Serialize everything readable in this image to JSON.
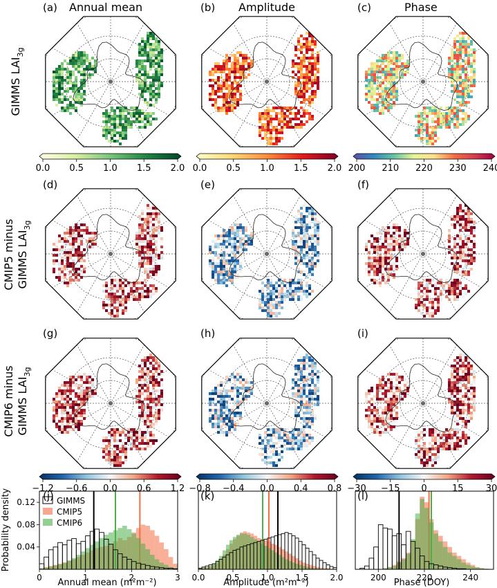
{
  "titles": {
    "col1": "Annual mean",
    "col2": "Amplitude",
    "col3": "Phase"
  },
  "row_labels": {
    "row1": "GIMMS LAI",
    "row1_sub": "3g",
    "row2_line1": "CMIP5 minus",
    "row2_line2": "GIMMS LAI",
    "row2_sub": "3g",
    "row3_line1": "CMIP6 minus",
    "row3_line2": "GIMMS LAI",
    "row3_sub": "3g"
  },
  "panel_letters": {
    "a": "(a)",
    "b": "(b)",
    "c": "(c)",
    "d": "(d)",
    "e": "(e)",
    "f": "(f)",
    "g": "(g)",
    "h": "(h)",
    "i": "(i)",
    "j": "(j)",
    "k": "(k)",
    "l": "(l)"
  },
  "colorbars": {
    "greens": {
      "ticks": [
        "0.0",
        "0.5",
        "1.0",
        "1.5",
        "2.0"
      ],
      "colors": [
        "#ffffe5",
        "#d9f0a3",
        "#78c679",
        "#238443",
        "#004529"
      ]
    },
    "ylorrd": {
      "ticks": [
        "0.0",
        "0.5",
        "1.0",
        "1.5",
        "2.0"
      ],
      "colors": [
        "#ffffcc",
        "#fed976",
        "#fd8d3c",
        "#e31a1c",
        "#800026"
      ]
    },
    "spectral": {
      "ticks": [
        "200",
        "210",
        "220",
        "230",
        "240"
      ],
      "colors": [
        "#5e4fa2",
        "#3288bd",
        "#66c2a5",
        "#e6f598",
        "#fee08b",
        "#f46d43",
        "#d53e4f",
        "#9e0142"
      ]
    },
    "div1": {
      "ticks": [
        "−1.2",
        "−0.6",
        "0.0",
        "0.6",
        "1.2"
      ],
      "colors": [
        "#053061",
        "#2166ac",
        "#92c5de",
        "#f7f7f7",
        "#f4a582",
        "#b2182b",
        "#67001f"
      ]
    },
    "div2": {
      "ticks": [
        "−0.8",
        "−0.4",
        "0.0",
        "0.4",
        "0.8"
      ],
      "colors": [
        "#053061",
        "#2166ac",
        "#92c5de",
        "#f7f7f7",
        "#f4a582",
        "#b2182b",
        "#67001f"
      ]
    },
    "div3": {
      "ticks": [
        "−30",
        "−15",
        "0",
        "15",
        "30"
      ],
      "colors": [
        "#053061",
        "#2166ac",
        "#92c5de",
        "#f7f7f7",
        "#f4a582",
        "#b2182b",
        "#67001f"
      ]
    }
  },
  "colors": {
    "gimms": "#000000",
    "cmip5": "#f46d43",
    "cmip6": "#4daf4a"
  },
  "chart_data": [
    {
      "type": "bar",
      "panel": "(j)",
      "xlabel": "Annual mean (m²m⁻²)",
      "ylabel": "Probability density",
      "xlim": [
        0,
        3
      ],
      "ylim": [
        0,
        0.14
      ],
      "xticks": [
        "0",
        "1",
        "2",
        "3"
      ],
      "yticks": [
        "0.04",
        "0.08",
        "0.12"
      ],
      "legend": [
        "GIMMS",
        "CMIP5",
        "CMIP6"
      ],
      "legend_position": "top-left",
      "bin_start": 0.0,
      "bin_width": 0.1,
      "series": [
        {
          "name": "GIMMS",
          "style": "outline",
          "values": [
            0.01,
            0.022,
            0.035,
            0.04,
            0.048,
            0.044,
            0.052,
            0.055,
            0.046,
            0.05,
            0.06,
            0.068,
            0.072,
            0.066,
            0.054,
            0.045,
            0.035,
            0.028,
            0.022,
            0.018,
            0.014,
            0.011,
            0.009,
            0.007,
            0.005,
            0.004,
            0.003,
            0.002,
            0.002,
            0.001
          ],
          "mean": 1.18
        },
        {
          "name": "CMIP5",
          "style": "filled",
          "values": [
            0.002,
            0.004,
            0.006,
            0.008,
            0.01,
            0.012,
            0.015,
            0.018,
            0.022,
            0.026,
            0.03,
            0.034,
            0.038,
            0.04,
            0.042,
            0.045,
            0.05,
            0.056,
            0.052,
            0.058,
            0.066,
            0.074,
            0.08,
            0.078,
            0.07,
            0.06,
            0.048,
            0.036,
            0.022,
            0.01
          ],
          "mean": 2.18
        },
        {
          "name": "CMIP6",
          "style": "filled",
          "values": [
            0.002,
            0.003,
            0.005,
            0.007,
            0.009,
            0.012,
            0.016,
            0.02,
            0.026,
            0.032,
            0.038,
            0.044,
            0.05,
            0.056,
            0.062,
            0.066,
            0.07,
            0.074,
            0.078,
            0.072,
            0.064,
            0.056,
            0.046,
            0.036,
            0.026,
            0.018,
            0.012,
            0.008,
            0.004,
            0.002
          ],
          "mean": 1.65
        }
      ]
    },
    {
      "type": "bar",
      "panel": "(k)",
      "xlabel": "Amplitude (m²m⁻²)",
      "xlim": [
        0,
        2
      ],
      "ylim": [
        0,
        0.14
      ],
      "xticks": [
        "0.0",
        "0.5",
        "1.0",
        "1.5",
        "2.0"
      ],
      "bin_start": 0.0,
      "bin_width": 0.05,
      "series": [
        {
          "name": "GIMMS",
          "style": "outline",
          "values": [
            0.002,
            0.004,
            0.006,
            0.008,
            0.01,
            0.014,
            0.018,
            0.022,
            0.026,
            0.03,
            0.034,
            0.036,
            0.04,
            0.042,
            0.044,
            0.046,
            0.048,
            0.05,
            0.052,
            0.054,
            0.056,
            0.058,
            0.06,
            0.062,
            0.064,
            0.066,
            0.064,
            0.06,
            0.056,
            0.05,
            0.044,
            0.038,
            0.032,
            0.026,
            0.02,
            0.016,
            0.012,
            0.008,
            0.005,
            0.003
          ],
          "mean": 1.15
        },
        {
          "name": "CMIP5",
          "style": "filled",
          "values": [
            0.002,
            0.003,
            0.004,
            0.006,
            0.008,
            0.012,
            0.018,
            0.026,
            0.036,
            0.046,
            0.054,
            0.06,
            0.066,
            0.068,
            0.066,
            0.064,
            0.06,
            0.056,
            0.054,
            0.052,
            0.05,
            0.046,
            0.044,
            0.04,
            0.036,
            0.032,
            0.028,
            0.024,
            0.02,
            0.016,
            0.012,
            0.01,
            0.008,
            0.006,
            0.004,
            0.003,
            0.002,
            0.002,
            0.001,
            0.001
          ],
          "mean": 1.02
        },
        {
          "name": "CMIP6",
          "style": "filled",
          "values": [
            0.002,
            0.003,
            0.004,
            0.006,
            0.01,
            0.016,
            0.024,
            0.034,
            0.044,
            0.052,
            0.058,
            0.062,
            0.064,
            0.064,
            0.062,
            0.058,
            0.054,
            0.05,
            0.046,
            0.042,
            0.038,
            0.034,
            0.03,
            0.026,
            0.022,
            0.018,
            0.015,
            0.012,
            0.01,
            0.008,
            0.006,
            0.004,
            0.003,
            0.002,
            0.002,
            0.001,
            0.001,
            0.001,
            0.0,
            0.0
          ],
          "mean": 0.93
        }
      ]
    },
    {
      "type": "bar",
      "panel": "(l)",
      "xlabel": "Phase (DOY)",
      "xlim": [
        190,
        250
      ],
      "ylim": [
        0,
        0.14
      ],
      "xticks": [
        "200",
        "220",
        "240"
      ],
      "bin_start": 190,
      "bin_width": 2,
      "series": [
        {
          "name": "GIMMS",
          "style": "outline",
          "values": [
            0.0,
            0.002,
            0.006,
            0.02,
            0.04,
            0.08,
            0.074,
            0.072,
            0.06,
            0.064,
            0.044,
            0.068,
            0.05,
            0.038,
            0.024,
            0.014,
            0.01,
            0.008,
            0.006,
            0.004,
            0.003,
            0.002,
            0.001,
            0.001,
            0.0,
            0.0,
            0.0,
            0.0,
            0.0,
            0.0
          ],
          "mean": 209
        },
        {
          "name": "CMIP5",
          "style": "filled",
          "values": [
            0.0,
            0.0,
            0.0,
            0.0,
            0.0,
            0.0,
            0.002,
            0.004,
            0.008,
            0.014,
            0.02,
            0.03,
            0.05,
            0.09,
            0.13,
            0.12,
            0.09,
            0.07,
            0.06,
            0.05,
            0.04,
            0.03,
            0.024,
            0.018,
            0.012,
            0.008,
            0.004,
            0.002,
            0.001,
            0.0
          ],
          "mean": 222
        },
        {
          "name": "CMIP6",
          "style": "filled",
          "values": [
            0.0,
            0.0,
            0.0,
            0.0,
            0.0,
            0.0,
            0.002,
            0.004,
            0.006,
            0.012,
            0.018,
            0.028,
            0.054,
            0.1,
            0.126,
            0.11,
            0.084,
            0.064,
            0.05,
            0.04,
            0.03,
            0.024,
            0.018,
            0.012,
            0.008,
            0.005,
            0.003,
            0.002,
            0.001,
            0.0
          ],
          "mean": 223
        }
      ]
    }
  ]
}
